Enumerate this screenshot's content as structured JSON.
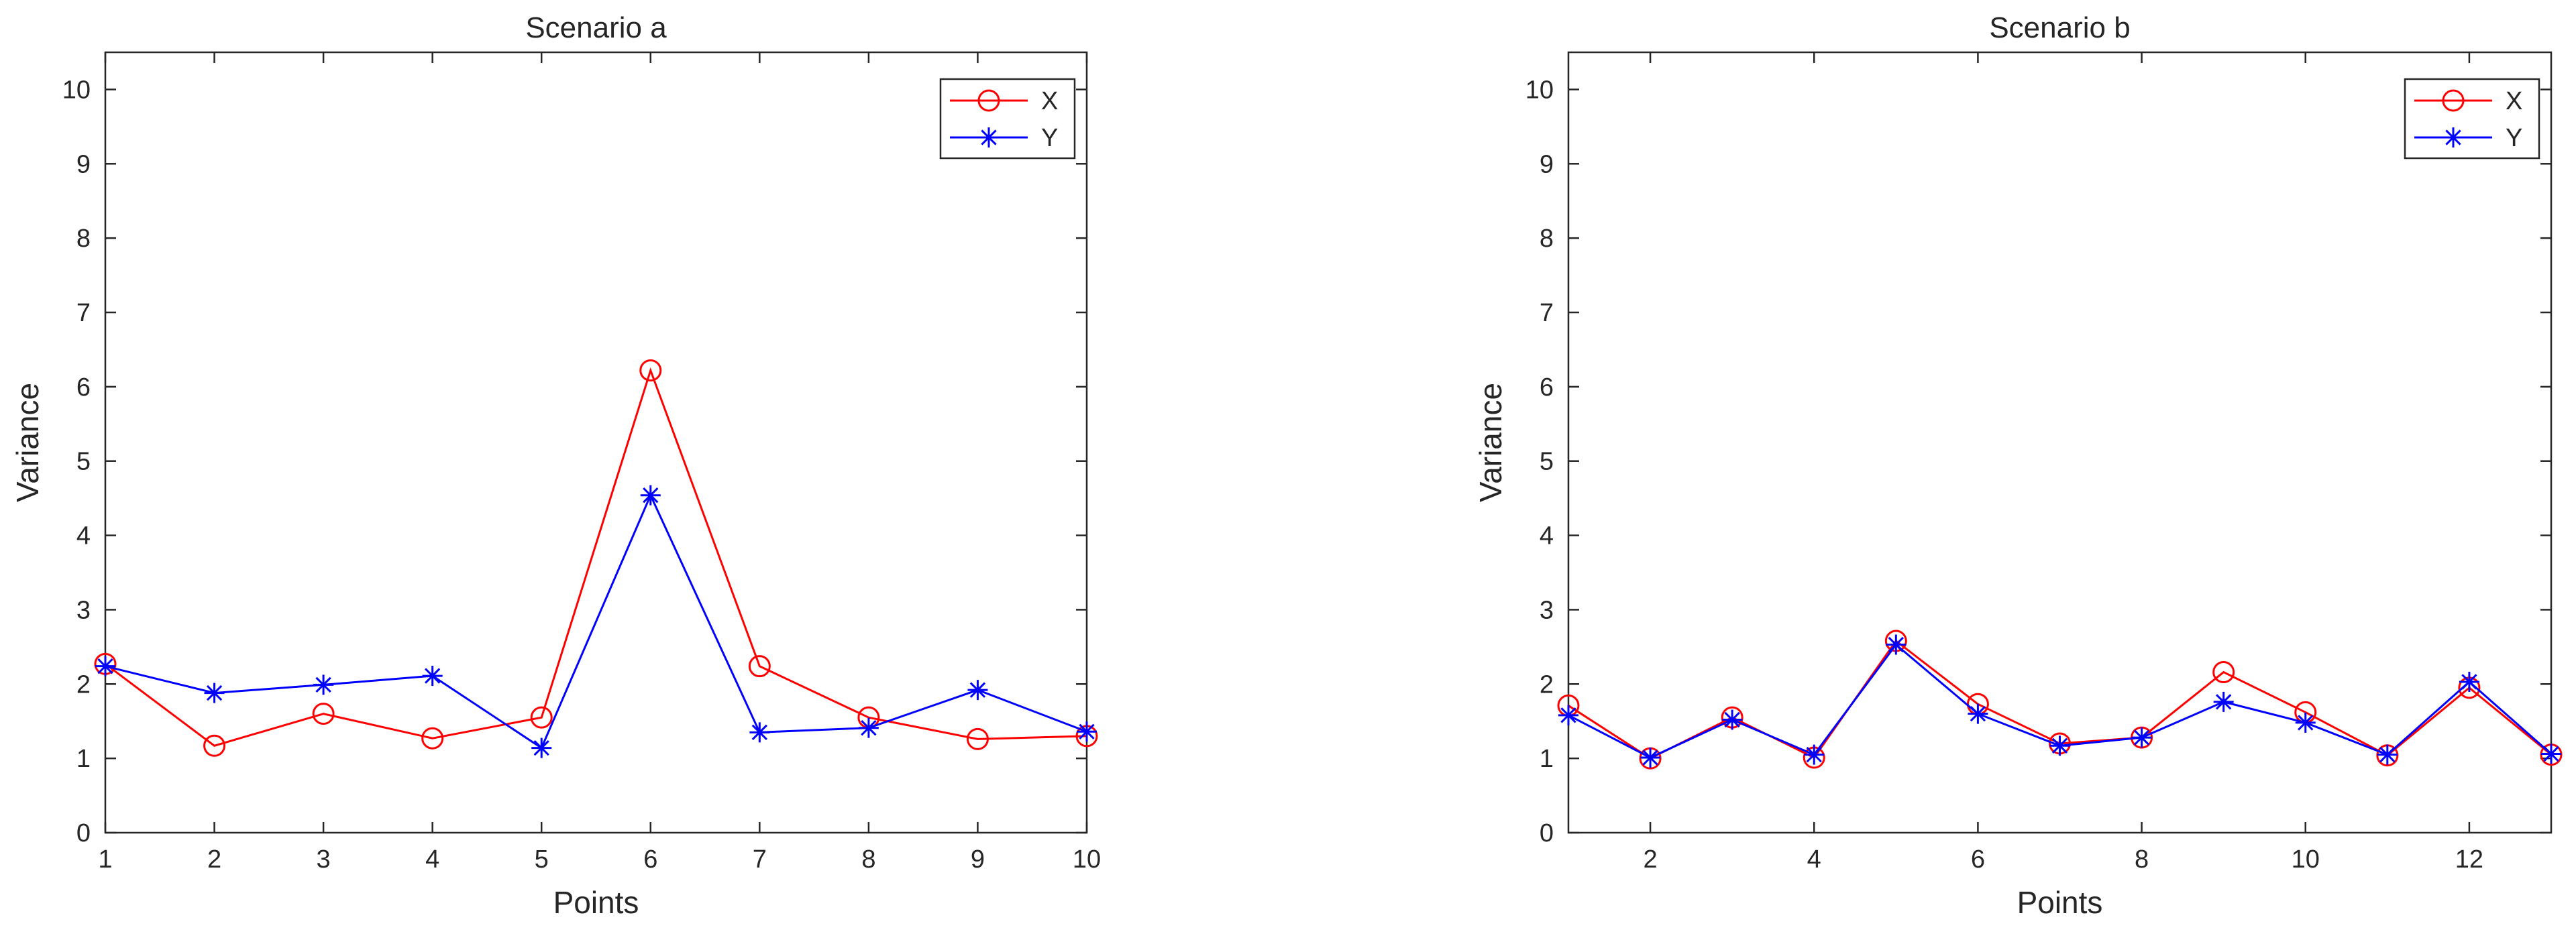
{
  "chart_data": [
    {
      "type": "line",
      "title": "Scenario a",
      "xlabel": "Points",
      "ylabel": "Variance",
      "xlim": [
        1,
        10
      ],
      "ylim": [
        0,
        10.5
      ],
      "xticks": [
        1,
        2,
        3,
        4,
        5,
        6,
        7,
        8,
        9,
        10
      ],
      "yticks": [
        0,
        1,
        2,
        3,
        4,
        5,
        6,
        7,
        8,
        9,
        10
      ],
      "legend_position": "top-right",
      "grid": false,
      "series": [
        {
          "name": "X",
          "color": "#ff0000",
          "marker": "circle",
          "x": [
            1,
            2,
            3,
            4,
            5,
            6,
            7,
            8,
            9,
            10
          ],
          "y": [
            2.27,
            1.17,
            1.6,
            1.27,
            1.55,
            6.22,
            2.24,
            1.55,
            1.26,
            1.3
          ]
        },
        {
          "name": "Y",
          "color": "#0000ff",
          "marker": "asterisk",
          "x": [
            1,
            2,
            3,
            4,
            5,
            6,
            7,
            8,
            9,
            10
          ],
          "y": [
            2.24,
            1.88,
            1.99,
            2.11,
            1.14,
            4.54,
            1.35,
            1.41,
            1.92,
            1.36
          ]
        }
      ]
    },
    {
      "type": "line",
      "title": "Scenario b",
      "xlabel": "Points",
      "ylabel": "Variance",
      "xlim": [
        1,
        13
      ],
      "ylim": [
        0,
        10.5
      ],
      "xticks": [
        2,
        4,
        6,
        8,
        10,
        12
      ],
      "yticks": [
        0,
        1,
        2,
        3,
        4,
        5,
        6,
        7,
        8,
        9,
        10
      ],
      "legend_position": "top-right",
      "grid": false,
      "series": [
        {
          "name": "X",
          "color": "#ff0000",
          "marker": "circle",
          "x": [
            1,
            2,
            3,
            4,
            5,
            6,
            7,
            8,
            9,
            10,
            11,
            12,
            13
          ],
          "y": [
            1.71,
            1.0,
            1.55,
            1.01,
            2.58,
            1.73,
            1.2,
            1.28,
            2.16,
            1.62,
            1.04,
            1.95,
            1.05
          ]
        },
        {
          "name": "Y",
          "color": "#0000ff",
          "marker": "asterisk",
          "x": [
            1,
            2,
            3,
            4,
            5,
            6,
            7,
            8,
            9,
            10,
            11,
            12,
            13
          ],
          "y": [
            1.58,
            1.01,
            1.52,
            1.05,
            2.53,
            1.6,
            1.17,
            1.28,
            1.76,
            1.48,
            1.05,
            2.03,
            1.06
          ]
        }
      ]
    }
  ]
}
